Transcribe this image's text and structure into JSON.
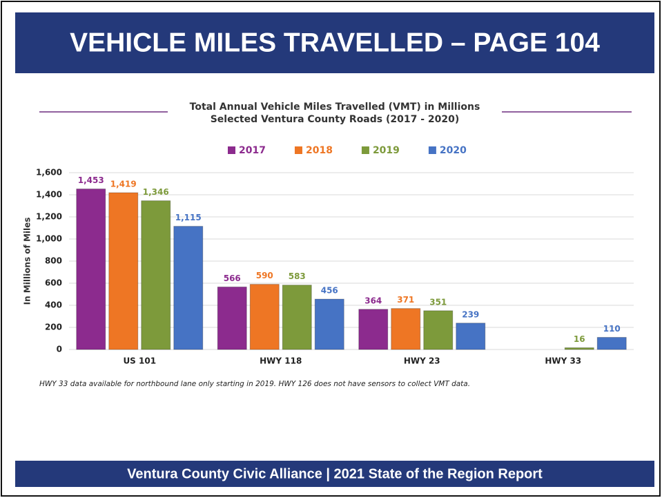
{
  "header": {
    "title": "VEHICLE MILES TRAVELLED – PAGE 104"
  },
  "chart_data": {
    "type": "bar",
    "title": "Total Annual Vehicle Miles Travelled (VMT) in Millions",
    "subtitle": "Selected Ventura County Roads (2017 - 2020)",
    "y_label": "In Millions of Miles",
    "categories": [
      "US 101",
      "HWY 118",
      "HWY 23",
      "HWY 33"
    ],
    "series": [
      {
        "name": "2017",
        "color": "#8c2b8e",
        "values": [
          1453,
          566,
          364,
          null
        ],
        "value_labels": [
          "1,453",
          "566",
          "364",
          null
        ]
      },
      {
        "name": "2018",
        "color": "#ee7624",
        "values": [
          1419,
          590,
          371,
          null
        ],
        "value_labels": [
          "1,419",
          "590",
          "371",
          null
        ]
      },
      {
        "name": "2019",
        "color": "#7d9a3b",
        "values": [
          1346,
          583,
          351,
          16
        ],
        "value_labels": [
          "1,346",
          "583",
          "351",
          "16"
        ]
      },
      {
        "name": "2020",
        "color": "#4673c4",
        "values": [
          1115,
          456,
          239,
          110
        ],
        "value_labels": [
          "1,115",
          "456",
          "239",
          "110"
        ]
      }
    ],
    "ylim": [
      0,
      1600
    ],
    "yticks": [
      0,
      200,
      400,
      600,
      800,
      {
        "value": 1000,
        "label": "1,000"
      },
      {
        "value": 1200,
        "label": "1,200"
      },
      {
        "value": 1400,
        "label": "1,400"
      },
      {
        "value": 1600,
        "label": "1,600"
      }
    ],
    "grid": true,
    "legend": "top",
    "note": "HWY 33 data available for northbound lane only starting in 2019.   HWY 126 does not have sensors to collect VMT data."
  },
  "footer": {
    "text": "Ventura County Civic Alliance  |  2021 State of the Region Report"
  }
}
